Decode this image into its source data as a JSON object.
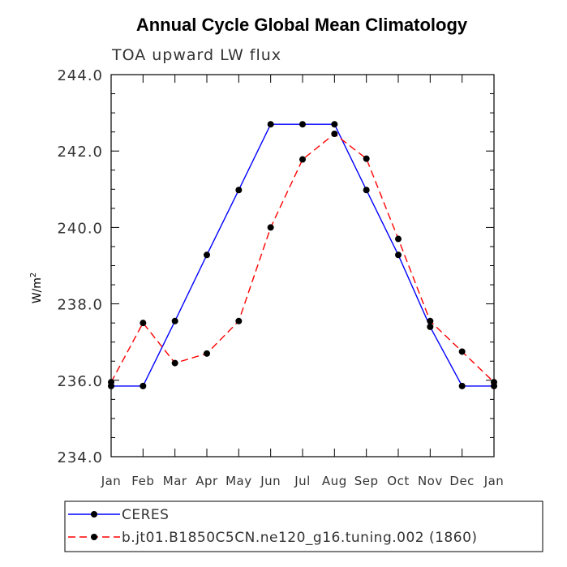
{
  "chart_data": {
    "type": "line",
    "title": "Annual Cycle Global Mean Climatology",
    "subtitle": "TOA upward LW flux",
    "ylabel": "W/m",
    "ylabel_superscript": "2",
    "xlabel": "",
    "categories": [
      "Jan",
      "Feb",
      "Mar",
      "Apr",
      "May",
      "Jun",
      "Jul",
      "Aug",
      "Sep",
      "Oct",
      "Nov",
      "Dec",
      "Jan"
    ],
    "ylim": [
      234.0,
      244.0
    ],
    "yticks": [
      "234.0",
      "236.0",
      "238.0",
      "240.0",
      "242.0",
      "244.0"
    ],
    "grid": false,
    "legend_position": "bottom",
    "series": [
      {
        "name": "CERES",
        "color": "#0000ff",
        "line_style": "solid",
        "marker": "filled-circle",
        "values": [
          235.85,
          235.85,
          237.55,
          239.28,
          240.98,
          242.7,
          242.7,
          242.7,
          240.98,
          239.28,
          237.4,
          235.85,
          235.85
        ]
      },
      {
        "name": "b.jt01.B1850C5CN.ne120_g16.tuning.002 (1860)",
        "color": "#ff0000",
        "line_style": "dashed",
        "marker": "filled-circle",
        "values": [
          235.95,
          237.5,
          236.45,
          236.7,
          237.55,
          240.0,
          241.78,
          242.45,
          241.8,
          239.7,
          237.55,
          236.75,
          235.95
        ]
      }
    ]
  }
}
